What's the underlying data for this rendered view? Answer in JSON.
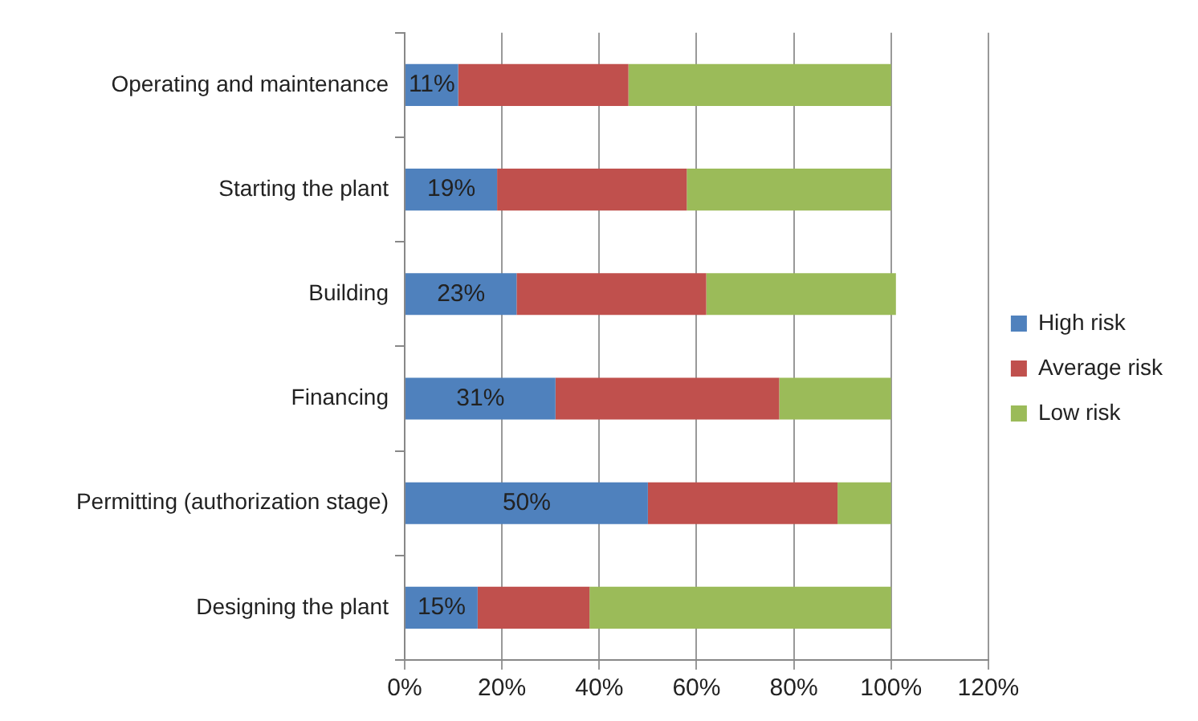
{
  "chart_data": {
    "type": "bar",
    "orientation": "horizontal",
    "stacked": true,
    "categories": [
      "Operating and maintenance",
      "Starting the plant",
      "Building",
      "Financing",
      "Permitting (authorization stage)",
      "Designing the plant"
    ],
    "series": [
      {
        "name": "High risk",
        "color": "#4f81bd",
        "values": [
          11,
          19,
          23,
          31,
          50,
          15
        ],
        "value_labels": [
          "11%",
          "19%",
          "23%",
          "31%",
          "50%",
          "15%"
        ]
      },
      {
        "name": "Average risk",
        "color": "#c0504d",
        "values": [
          35,
          39,
          39,
          46,
          39,
          23
        ]
      },
      {
        "name": "Low risk",
        "color": "#9bbb59",
        "values": [
          54,
          42,
          39,
          23,
          11,
          62
        ]
      }
    ],
    "xlim": [
      0,
      120
    ],
    "xticks": [
      {
        "value": 0,
        "label": "0%"
      },
      {
        "value": 20,
        "label": "20%"
      },
      {
        "value": 40,
        "label": "40%"
      },
      {
        "value": 60,
        "label": "60%"
      },
      {
        "value": 80,
        "label": "80%"
      },
      {
        "value": 100,
        "label": "100%"
      },
      {
        "value": 120,
        "label": "120%"
      }
    ],
    "grid": "x",
    "legend": "right"
  }
}
